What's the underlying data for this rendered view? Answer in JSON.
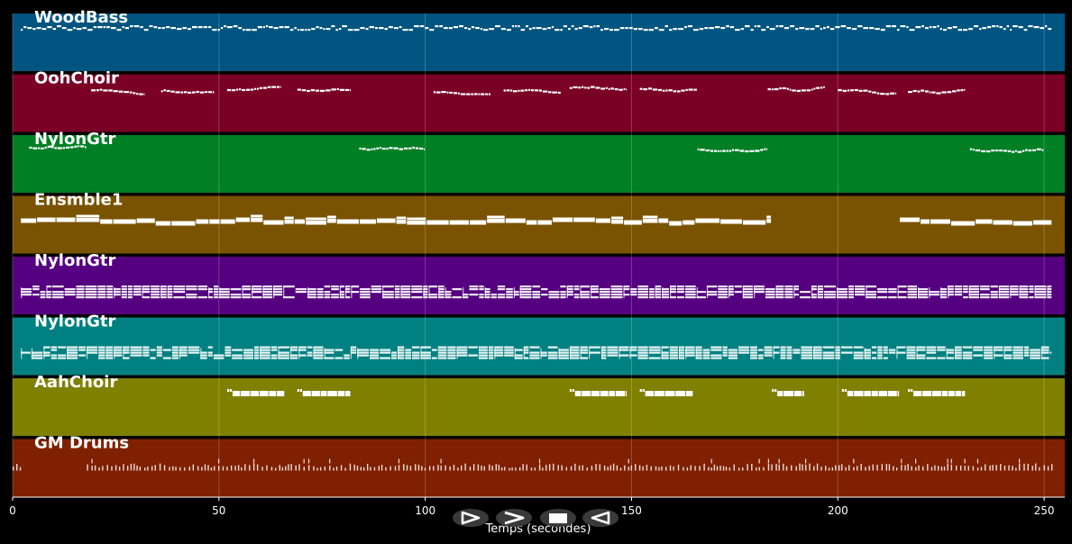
{
  "xaxis": {
    "label": "Temps (secondes)",
    "min": 0,
    "max": 255,
    "ticks": [
      0,
      50,
      100,
      150,
      200,
      250
    ]
  },
  "tracks": [
    {
      "name": "WoodBass",
      "color": "#005480",
      "pattern": "bass",
      "segments": [
        [
          2,
          252
        ]
      ]
    },
    {
      "name": "OohChoir",
      "color": "#7a0026",
      "pattern": "phrase",
      "segments": [
        [
          19,
          32
        ],
        [
          36,
          49
        ],
        [
          52,
          65
        ],
        [
          69,
          82
        ],
        [
          102,
          116
        ],
        [
          119,
          133
        ],
        [
          135,
          149
        ],
        [
          152,
          166
        ],
        [
          183,
          197
        ],
        [
          200,
          214
        ],
        [
          217,
          231
        ]
      ]
    },
    {
      "name": "NylonGtr",
      "color": "#007f24",
      "pattern": "phrase",
      "segments": [
        [
          4,
          18
        ],
        [
          84,
          100
        ],
        [
          166,
          183
        ],
        [
          232,
          250
        ]
      ]
    },
    {
      "name": "Ensmble1",
      "color": "#7a5300",
      "pattern": "pad",
      "segments": [
        [
          2,
          184
        ],
        [
          215,
          252
        ]
      ]
    },
    {
      "name": "NylonGtr",
      "color": "#550080",
      "pattern": "dense",
      "segments": [
        [
          2,
          252
        ]
      ]
    },
    {
      "name": "NylonGtr",
      "color": "#008080",
      "pattern": "dense",
      "segments": [
        [
          2,
          252
        ]
      ]
    },
    {
      "name": "AahChoir",
      "color": "#7f7f00",
      "pattern": "chord",
      "segments": [
        [
          52,
          66
        ],
        [
          69,
          82
        ],
        [
          135,
          149
        ],
        [
          152,
          165
        ],
        [
          184,
          192
        ],
        [
          201,
          215
        ],
        [
          217,
          231
        ]
      ]
    },
    {
      "name": "GM Drums",
      "color": "#7f2000",
      "pattern": "drums",
      "segments": [
        [
          0,
          2
        ],
        [
          18,
          252
        ]
      ]
    }
  ],
  "controls": [
    {
      "name": "play-button",
      "icon": "play-icon"
    },
    {
      "name": "fast-forward-button",
      "icon": "fast-forward-icon"
    },
    {
      "name": "stop-button",
      "icon": "stop-icon"
    },
    {
      "name": "rewind-button",
      "icon": "rewind-icon"
    }
  ]
}
